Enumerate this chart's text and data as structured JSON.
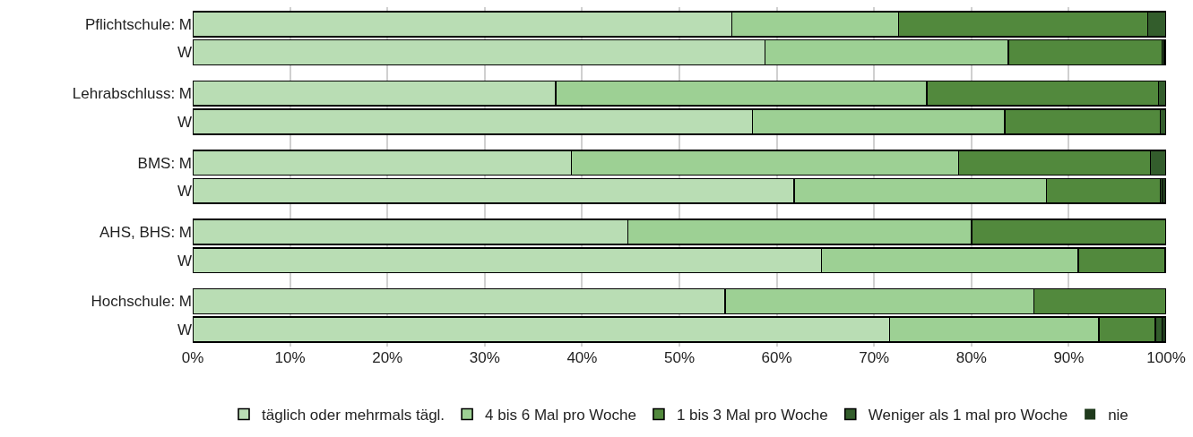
{
  "chart_data": {
    "type": "bar",
    "orientation": "horizontal",
    "stacked": true,
    "categories": [
      "Pflichtschule: M",
      "W",
      "Lehrabschluss: M",
      "W",
      "BMS: M",
      "W",
      "AHS, BHS: M",
      "W",
      "Hochschule: M",
      "W"
    ],
    "series": [
      {
        "name": "täglich oder mehrmals tägl.",
        "color": "#b9ddb4",
        "values": [
          55.4,
          58.8,
          37.3,
          57.5,
          38.9,
          61.8,
          44.7,
          64.6,
          54.7,
          71.6
        ]
      },
      {
        "name": "4 bis 6 Mal pro Woche",
        "color": "#9dd094",
        "values": [
          17.1,
          25.0,
          38.1,
          25.9,
          39.8,
          25.9,
          35.3,
          26.4,
          31.7,
          21.5
        ]
      },
      {
        "name": "1 bis 3 Mal pro Woche",
        "color": "#52893d",
        "values": [
          25.6,
          15.8,
          23.8,
          16.0,
          19.7,
          11.7,
          20.0,
          8.9,
          13.6,
          5.8
        ]
      },
      {
        "name": "Weniger als 1 mal pro Woche",
        "color": "#335d2c",
        "values": [
          1.9,
          0.2,
          0.8,
          0.6,
          1.6,
          0.2,
          0,
          0.1,
          0,
          0.7
        ]
      },
      {
        "name": "nie",
        "color": "#1f3a1c",
        "values": [
          0,
          0.2,
          0,
          0,
          0,
          0.4,
          0,
          0,
          0,
          0.4
        ]
      }
    ],
    "xlim": [
      0,
      100
    ],
    "xticks": [
      {
        "value": 0,
        "label": "0%"
      },
      {
        "value": 10,
        "label": "10%"
      },
      {
        "value": 20,
        "label": "20%"
      },
      {
        "value": 30,
        "label": "30%"
      },
      {
        "value": 40,
        "label": "40%"
      },
      {
        "value": 50,
        "label": "50%"
      },
      {
        "value": 60,
        "label": "60%"
      },
      {
        "value": 70,
        "label": "70%"
      },
      {
        "value": 80,
        "label": "80%"
      },
      {
        "value": 90,
        "label": "90%"
      },
      {
        "value": 100,
        "label": "100%"
      }
    ],
    "grid": "x",
    "legend": "bottom"
  }
}
